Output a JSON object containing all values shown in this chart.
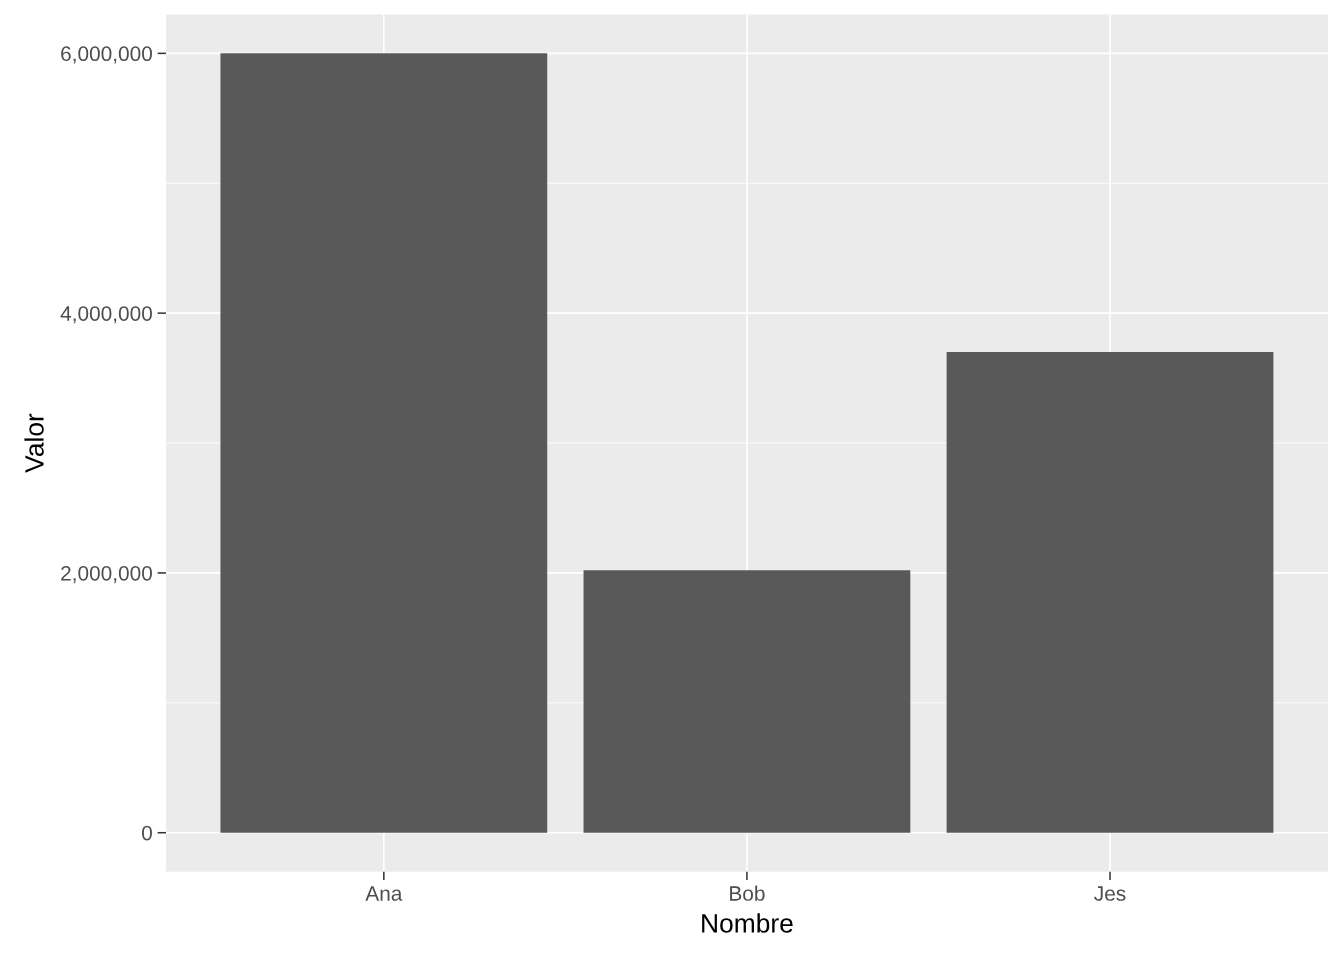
{
  "chart_data": {
    "type": "bar",
    "xlabel": "Nombre",
    "ylabel": "Valor",
    "categories": [
      "Ana",
      "Bob",
      "Jes"
    ],
    "values": [
      6000000,
      2020000,
      3700000
    ],
    "color": "#595959",
    "ylim": [
      -300000,
      6300000
    ],
    "yticks": [
      {
        "value": 0,
        "label": "0"
      },
      {
        "value": 2000000,
        "label": "2,000,000"
      },
      {
        "value": 4000000,
        "label": "4,000,000"
      },
      {
        "value": 6000000,
        "label": "6,000,000"
      }
    ],
    "grid": true
  }
}
